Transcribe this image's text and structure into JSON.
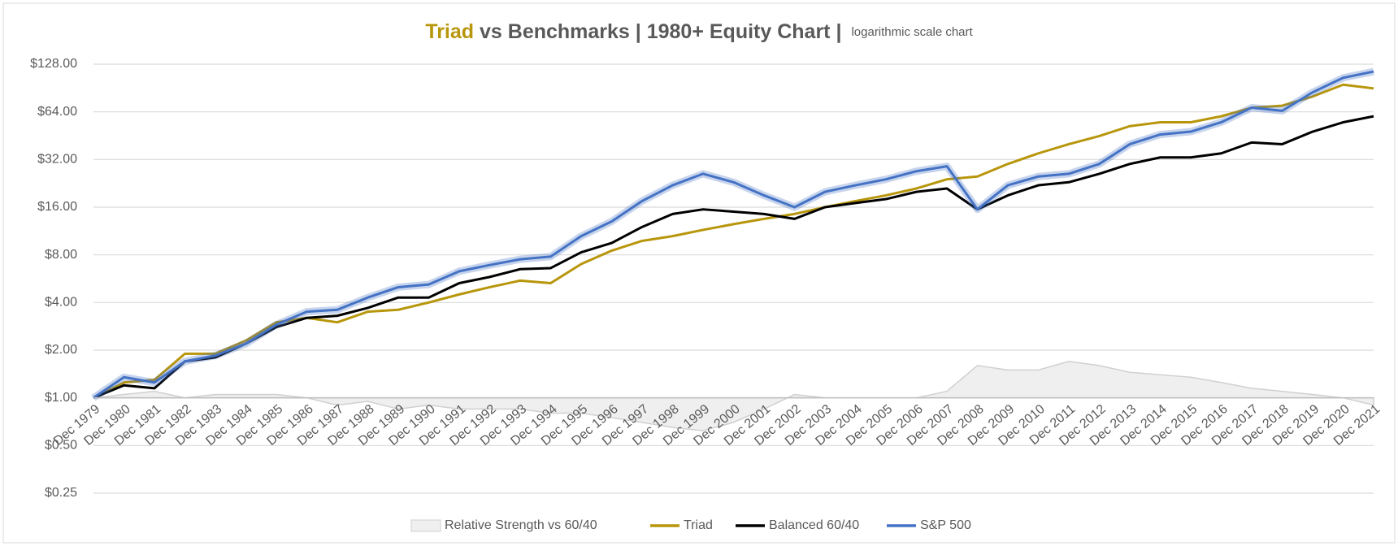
{
  "chart_data": {
    "type": "line",
    "title": {
      "highlight": "Triad",
      "main": " vs Benchmarks | 1980+ Equity Chart |",
      "note": "logarithmic scale chart"
    },
    "log_scale": true,
    "grid": true,
    "legend": "bottom",
    "categories": [
      "Dec 1979",
      "Dec 1980",
      "Dec 1981",
      "Dec 1982",
      "Dec 1983",
      "Dec 1984",
      "Dec 1985",
      "Dec 1986",
      "Dec 1987",
      "Dec 1988",
      "Dec 1989",
      "Dec 1990",
      "Dec 1991",
      "Dec 1992",
      "Dec 1993",
      "Dec 1994",
      "Dec 1995",
      "Dec 1996",
      "Dec 1997",
      "Dec 1998",
      "Dec 1999",
      "Dec 2000",
      "Dec 2001",
      "Dec 2002",
      "Dec 2003",
      "Dec 2004",
      "Dec 2005",
      "Dec 2006",
      "Dec 2007",
      "Dec 2008",
      "Dec 2009",
      "Dec 2010",
      "Dec 2011",
      "Dec 2012",
      "Dec 2013",
      "Dec 2014",
      "Dec 2015",
      "Dec 2016",
      "Dec 2017",
      "Dec 2018",
      "Dec 2019",
      "Dec 2020",
      "Dec 2021"
    ],
    "ylim": [
      0.25,
      128
    ],
    "yticks": [
      {
        "value": 0.25,
        "label": "$0.25"
      },
      {
        "value": 0.5,
        "label": "$0.50"
      },
      {
        "value": 1,
        "label": "$1.00"
      },
      {
        "value": 2,
        "label": "$2.00"
      },
      {
        "value": 4,
        "label": "$4.00"
      },
      {
        "value": 8,
        "label": "$8.00"
      },
      {
        "value": 16,
        "label": "$16.00"
      },
      {
        "value": 32,
        "label": "$32.00"
      },
      {
        "value": 64,
        "label": "$64.00"
      },
      {
        "value": 128,
        "label": "$128.00"
      }
    ],
    "series": [
      {
        "name": "Relative Strength vs 60/40",
        "type": "area",
        "color": "#efefef",
        "values": [
          1,
          1.05,
          1.1,
          1.0,
          1.05,
          1.05,
          1.05,
          1.0,
          0.9,
          0.95,
          0.85,
          0.9,
          0.85,
          0.85,
          0.85,
          0.8,
          0.8,
          0.75,
          0.7,
          0.65,
          0.62,
          0.7,
          0.85,
          1.05,
          1.0,
          1.0,
          1.0,
          1.0,
          1.1,
          1.6,
          1.5,
          1.5,
          1.7,
          1.6,
          1.45,
          1.4,
          1.35,
          1.25,
          1.15,
          1.1,
          1.05,
          1.0,
          0.9
        ]
      },
      {
        "name": "Triad",
        "type": "line",
        "color": "#b8960c",
        "values": [
          1,
          1.25,
          1.3,
          1.9,
          1.9,
          2.3,
          3.0,
          3.2,
          3.0,
          3.5,
          3.6,
          4.0,
          4.5,
          5.0,
          5.5,
          5.3,
          7.0,
          8.5,
          9.8,
          10.5,
          11.5,
          12.5,
          13.5,
          14.5,
          16,
          17.5,
          19,
          21,
          24,
          25,
          30,
          35,
          40,
          45,
          52,
          55,
          55,
          60,
          68,
          70,
          80,
          95,
          90
        ]
      },
      {
        "name": "Balanced 60/40",
        "type": "line",
        "color": "#000000",
        "values": [
          1,
          1.2,
          1.15,
          1.7,
          1.8,
          2.2,
          2.8,
          3.2,
          3.3,
          3.7,
          4.3,
          4.3,
          5.3,
          5.8,
          6.5,
          6.6,
          8.3,
          9.5,
          12,
          14.5,
          15.5,
          15,
          14.5,
          13.5,
          16,
          17,
          18,
          20,
          21,
          15.5,
          19,
          22,
          23,
          26,
          30,
          33,
          33,
          35,
          41,
          40,
          48,
          55,
          60
        ]
      },
      {
        "name": "S&P 500",
        "type": "line",
        "color": "#4472c4",
        "values": [
          1,
          1.35,
          1.25,
          1.7,
          1.85,
          2.2,
          2.9,
          3.5,
          3.6,
          4.3,
          5.0,
          5.2,
          6.3,
          6.9,
          7.5,
          7.8,
          10.5,
          13,
          17.5,
          22,
          26,
          23,
          19,
          16,
          20,
          22,
          24,
          27,
          29,
          15.5,
          22,
          25,
          26,
          30,
          40,
          46,
          48,
          55,
          68,
          65,
          85,
          105,
          115
        ]
      }
    ]
  }
}
